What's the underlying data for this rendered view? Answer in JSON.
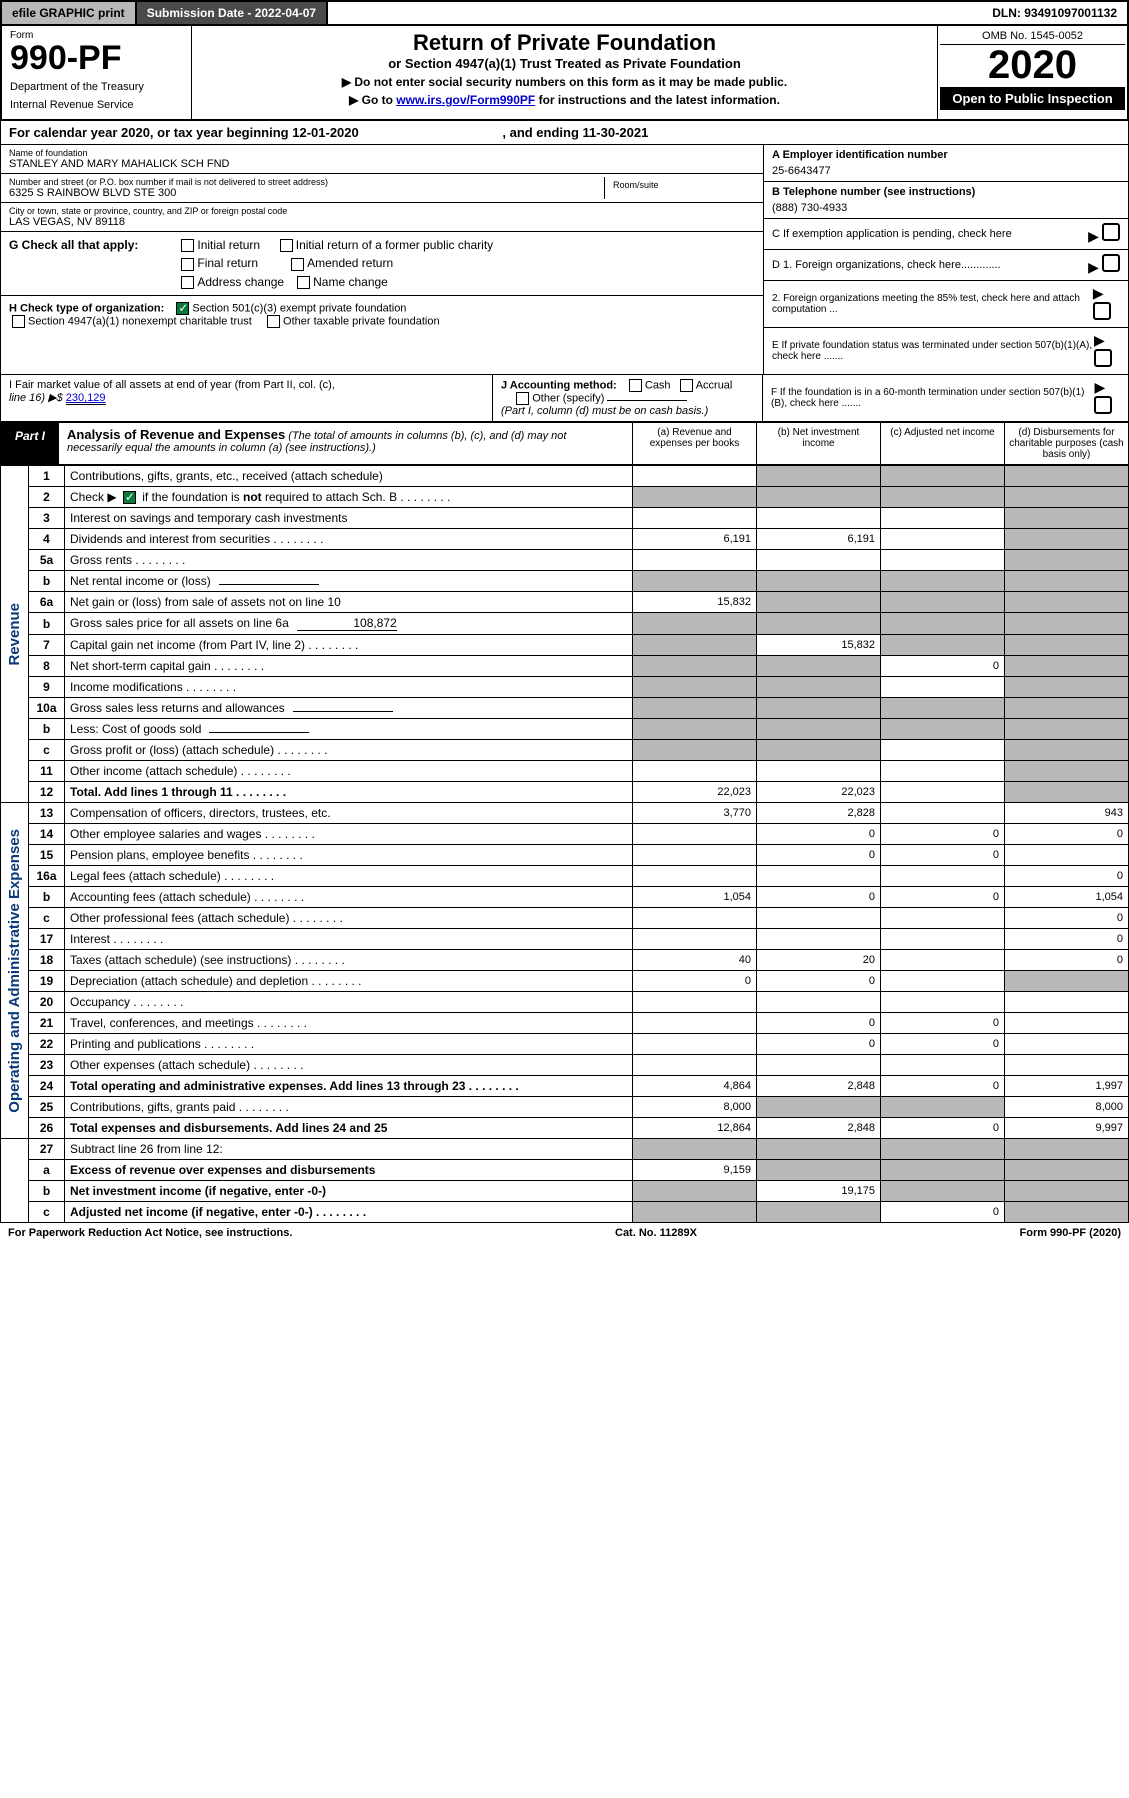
{
  "topbar": {
    "efile": "efile GRAPHIC print",
    "submission": "Submission Date - 2022-04-07",
    "dln": "DLN: 93491097001132"
  },
  "header": {
    "form_label": "Form",
    "form_number": "990-PF",
    "dept1": "Department of the Treasury",
    "dept2": "Internal Revenue Service",
    "title": "Return of Private Foundation",
    "subtitle": "or Section 4947(a)(1) Trust Treated as Private Foundation",
    "instr1": "▶ Do not enter social security numbers on this form as it may be made public.",
    "instr2_pre": "▶ Go to ",
    "instr2_link": "www.irs.gov/Form990PF",
    "instr2_post": " for instructions and the latest information.",
    "omb": "OMB No. 1545-0052",
    "year": "2020",
    "open": "Open to Public Inspection"
  },
  "cal_year": {
    "prefix": "For calendar year 2020, or tax year beginning ",
    "begin": "12-01-2020",
    "mid": " , and ending ",
    "end": "11-30-2021"
  },
  "foundation": {
    "name_label": "Name of foundation",
    "name": "STANLEY AND MARY MAHALICK SCH FND",
    "addr_label": "Number and street (or P.O. box number if mail is not delivered to street address)",
    "addr": "6325 S RAINBOW BLVD STE 300",
    "room_label": "Room/suite",
    "city_label": "City or town, state or province, country, and ZIP or foreign postal code",
    "city": "LAS VEGAS, NV  89118",
    "ein_label": "A Employer identification number",
    "ein": "25-6643477",
    "phone_label": "B Telephone number (see instructions)",
    "phone": "(888) 730-4933",
    "c_label": "C If exemption application is pending, check here",
    "d1": "D 1. Foreign organizations, check here.............",
    "d2": "2. Foreign organizations meeting the 85% test, check here and attach computation ...",
    "e": "E  If private foundation status was terminated under section 507(b)(1)(A), check here .......",
    "f": "F  If the foundation is in a 60-month termination under section 507(b)(1)(B), check here ......."
  },
  "g": {
    "label": "G Check all that apply:",
    "initial": "Initial return",
    "initial_former": "Initial return of a former public charity",
    "final": "Final return",
    "amended": "Amended return",
    "address": "Address change",
    "name": "Name change"
  },
  "h": {
    "label": "H Check type of organization:",
    "opt1": "Section 501(c)(3) exempt private foundation",
    "opt2": "Section 4947(a)(1) nonexempt charitable trust",
    "opt3": "Other taxable private foundation"
  },
  "i": {
    "label": "I Fair market value of all assets at end of year (from Part II, col. (c),",
    "line16_label": "line 16) ▶$ ",
    "line16_val": "230,129"
  },
  "j": {
    "label": "J Accounting method:",
    "cash": "Cash",
    "accrual": "Accrual",
    "other": "Other (specify)",
    "note": "(Part I, column (d) must be on cash basis.)"
  },
  "part1": {
    "label": "Part I",
    "title": "Analysis of Revenue and Expenses",
    "note": "(The total of amounts in columns (b), (c), and (d) may not necessarily equal the amounts in column (a) (see instructions).)",
    "col_a": "(a)   Revenue and expenses per books",
    "col_b": "(b)   Net investment income",
    "col_c": "(c)   Adjusted net income",
    "col_d": "(d)  Disbursements for charitable purposes (cash basis only)"
  },
  "sidelabels": {
    "revenue": "Revenue",
    "expenses": "Operating and Administrative Expenses"
  },
  "rows": [
    {
      "n": "1",
      "desc": "Contributions, gifts, grants, etc., received (attach schedule)",
      "a": "",
      "b": "gray",
      "c": "gray",
      "d": "gray"
    },
    {
      "n": "2",
      "desc": "Check ▶ ☑ if the foundation is not required to attach Sch. B",
      "a": "gray",
      "b": "gray",
      "c": "gray",
      "d": "gray",
      "dotted": true
    },
    {
      "n": "3",
      "desc": "Interest on savings and temporary cash investments",
      "a": "",
      "b": "",
      "c": "",
      "d": "gray"
    },
    {
      "n": "4",
      "desc": "Dividends and interest from securities",
      "a": "6,191",
      "b": "6,191",
      "c": "",
      "d": "gray",
      "dotted": true
    },
    {
      "n": "5a",
      "desc": "Gross rents",
      "a": "",
      "b": "",
      "c": "",
      "d": "gray",
      "dotted": true
    },
    {
      "n": "b",
      "desc": "Net rental income or (loss)",
      "a": "gray",
      "b": "gray",
      "c": "gray",
      "d": "gray",
      "inline": true
    },
    {
      "n": "6a",
      "desc": "Net gain or (loss) from sale of assets not on line 10",
      "a": "15,832",
      "b": "gray",
      "c": "gray",
      "d": "gray"
    },
    {
      "n": "b",
      "desc": "Gross sales price for all assets on line 6a",
      "a": "gray",
      "b": "gray",
      "c": "gray",
      "d": "gray",
      "inline": true,
      "inline_val": "108,872"
    },
    {
      "n": "7",
      "desc": "Capital gain net income (from Part IV, line 2)",
      "a": "gray",
      "b": "15,832",
      "c": "gray",
      "d": "gray",
      "dotted": true
    },
    {
      "n": "8",
      "desc": "Net short-term capital gain",
      "a": "gray",
      "b": "gray",
      "c": "0",
      "d": "gray",
      "dotted": true
    },
    {
      "n": "9",
      "desc": "Income modifications",
      "a": "gray",
      "b": "gray",
      "c": "",
      "d": "gray",
      "dotted": true
    },
    {
      "n": "10a",
      "desc": "Gross sales less returns and allowances",
      "a": "gray",
      "b": "gray",
      "c": "gray",
      "d": "gray",
      "inline": true
    },
    {
      "n": "b",
      "desc": "Less: Cost of goods sold",
      "a": "gray",
      "b": "gray",
      "c": "gray",
      "d": "gray",
      "inline": true,
      "dotted": true
    },
    {
      "n": "c",
      "desc": "Gross profit or (loss) (attach schedule)",
      "a": "gray",
      "b": "gray",
      "c": "",
      "d": "gray",
      "dotted": true
    },
    {
      "n": "11",
      "desc": "Other income (attach schedule)",
      "a": "",
      "b": "",
      "c": "",
      "d": "gray",
      "dotted": true
    },
    {
      "n": "12",
      "desc": "Total. Add lines 1 through 11",
      "a": "22,023",
      "b": "22,023",
      "c": "",
      "d": "gray",
      "bold": true,
      "dotted": true
    }
  ],
  "exp_rows": [
    {
      "n": "13",
      "desc": "Compensation of officers, directors, trustees, etc.",
      "a": "3,770",
      "b": "2,828",
      "c": "",
      "d": "943"
    },
    {
      "n": "14",
      "desc": "Other employee salaries and wages",
      "a": "",
      "b": "0",
      "c": "0",
      "d": "0",
      "dotted": true
    },
    {
      "n": "15",
      "desc": "Pension plans, employee benefits",
      "a": "",
      "b": "0",
      "c": "0",
      "d": "",
      "dotted": true
    },
    {
      "n": "16a",
      "desc": "Legal fees (attach schedule)",
      "a": "",
      "b": "",
      "c": "",
      "d": "0",
      "dotted": true
    },
    {
      "n": "b",
      "desc": "Accounting fees (attach schedule)",
      "a": "1,054",
      "b": "0",
      "c": "0",
      "d": "1,054",
      "dotted": true
    },
    {
      "n": "c",
      "desc": "Other professional fees (attach schedule)",
      "a": "",
      "b": "",
      "c": "",
      "d": "0",
      "dotted": true
    },
    {
      "n": "17",
      "desc": "Interest",
      "a": "",
      "b": "",
      "c": "",
      "d": "0",
      "dotted": true
    },
    {
      "n": "18",
      "desc": "Taxes (attach schedule) (see instructions)",
      "a": "40",
      "b": "20",
      "c": "",
      "d": "0",
      "dotted": true
    },
    {
      "n": "19",
      "desc": "Depreciation (attach schedule) and depletion",
      "a": "0",
      "b": "0",
      "c": "",
      "d": "gray",
      "dotted": true
    },
    {
      "n": "20",
      "desc": "Occupancy",
      "a": "",
      "b": "",
      "c": "",
      "d": "",
      "dotted": true
    },
    {
      "n": "21",
      "desc": "Travel, conferences, and meetings",
      "a": "",
      "b": "0",
      "c": "0",
      "d": "",
      "dotted": true
    },
    {
      "n": "22",
      "desc": "Printing and publications",
      "a": "",
      "b": "0",
      "c": "0",
      "d": "",
      "dotted": true
    },
    {
      "n": "23",
      "desc": "Other expenses (attach schedule)",
      "a": "",
      "b": "",
      "c": "",
      "d": "",
      "dotted": true
    },
    {
      "n": "24",
      "desc": "Total operating and administrative expenses. Add lines 13 through 23",
      "a": "4,864",
      "b": "2,848",
      "c": "0",
      "d": "1,997",
      "bold": true,
      "dotted": true
    },
    {
      "n": "25",
      "desc": "Contributions, gifts, grants paid",
      "a": "8,000",
      "b": "gray",
      "c": "gray",
      "d": "8,000",
      "dotted": true
    },
    {
      "n": "26",
      "desc": "Total expenses and disbursements. Add lines 24 and 25",
      "a": "12,864",
      "b": "2,848",
      "c": "0",
      "d": "9,997",
      "bold": true
    }
  ],
  "bottom_rows": [
    {
      "n": "27",
      "desc": "Subtract line 26 from line 12:",
      "a": "gray",
      "b": "gray",
      "c": "gray",
      "d": "gray"
    },
    {
      "n": "a",
      "desc": "Excess of revenue over expenses and disbursements",
      "a": "9,159",
      "b": "gray",
      "c": "gray",
      "d": "gray",
      "bold": true
    },
    {
      "n": "b",
      "desc": "Net investment income (if negative, enter -0-)",
      "a": "gray",
      "b": "19,175",
      "c": "gray",
      "d": "gray",
      "bold": true
    },
    {
      "n": "c",
      "desc": "Adjusted net income (if negative, enter -0-)",
      "a": "gray",
      "b": "gray",
      "c": "0",
      "d": "gray",
      "bold": true,
      "dotted": true
    }
  ],
  "footer": {
    "left": "For Paperwork Reduction Act Notice, see instructions.",
    "mid": "Cat. No. 11289X",
    "right": "Form 990-PF (2020)"
  },
  "colors": {
    "gray": "#b8b8b8",
    "dark": "#4a4a4a",
    "green": "#0a7a3a",
    "link": "#0000cc"
  }
}
